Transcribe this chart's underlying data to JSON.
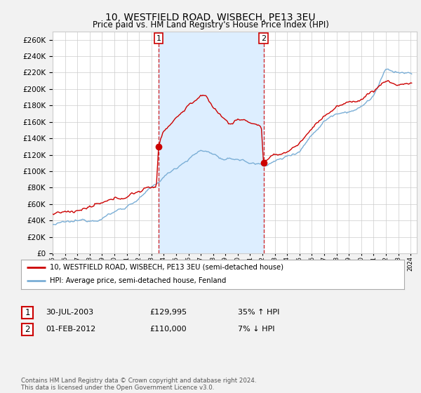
{
  "title": "10, WESTFIELD ROAD, WISBECH, PE13 3EU",
  "subtitle": "Price paid vs. HM Land Registry's House Price Index (HPI)",
  "ylim": [
    0,
    270000
  ],
  "yticks": [
    0,
    20000,
    40000,
    60000,
    80000,
    100000,
    120000,
    140000,
    160000,
    180000,
    200000,
    220000,
    240000,
    260000
  ],
  "year_start": 1995,
  "year_end": 2024,
  "red_color": "#cc0000",
  "blue_color": "#7aaed6",
  "shade_color": "#ddeeff",
  "marker1_value": 129995,
  "marker2_value": 110000,
  "sale1_x": 2003.583,
  "sale2_x": 2012.083,
  "sale1_date": "30-JUL-2003",
  "sale1_price": "£129,995",
  "sale1_hpi": "35% ↑ HPI",
  "sale2_date": "01-FEB-2012",
  "sale2_price": "£110,000",
  "sale2_hpi": "7% ↓ HPI",
  "legend_red": "10, WESTFIELD ROAD, WISBECH, PE13 3EU (semi-detached house)",
  "legend_blue": "HPI: Average price, semi-detached house, Fenland",
  "footer": "Contains HM Land Registry data © Crown copyright and database right 2024.\nThis data is licensed under the Open Government Licence v3.0.",
  "background_color": "#f2f2f2",
  "plot_bg_color": "#ffffff",
  "grid_color": "#cccccc"
}
